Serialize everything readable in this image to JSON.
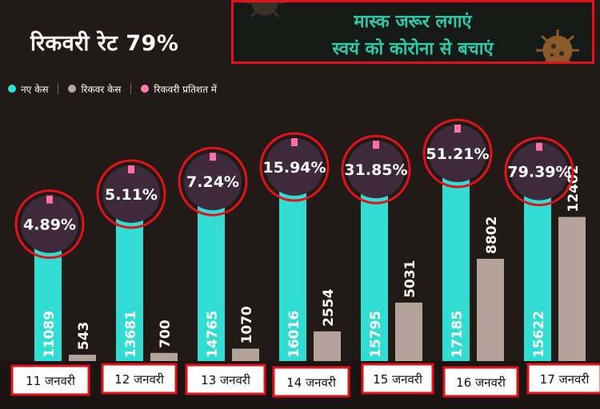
{
  "title": "रिकवरी रेट 79%",
  "banner": {
    "line1": "मास्क जरूर लगाएं",
    "line2": "स्वयं को कोरोना से बचाएं"
  },
  "legend": [
    {
      "label": "नए केस",
      "color": "#2ee0d6"
    },
    {
      "label": "रिकवर केस",
      "color": "#b7a7a0"
    },
    {
      "label": "रिकवरी प्रतिशत में",
      "color": "#ff7bb0"
    }
  ],
  "colors": {
    "new_cases": "#31ddd3",
    "recovered": "#b3a39b",
    "badge_fill": "#3f2a3c",
    "badge_ring": "#e0121b",
    "badge_tick": "#ff6fa9",
    "date_box_border": "#e0121b"
  },
  "chart_data": {
    "type": "bar",
    "categories": [
      "11 जनवरी",
      "12 जनवरी",
      "13 जनवरी",
      "14 जनवरी",
      "15 जनवरी",
      "16 जनवरी",
      "17 जनवरी"
    ],
    "series": [
      {
        "name": "नए केस",
        "values": [
          11089,
          13681,
          14765,
          16016,
          15795,
          17185,
          15622
        ]
      },
      {
        "name": "रिकवर केस",
        "values": [
          543,
          700,
          1070,
          2554,
          5031,
          8802,
          12402
        ]
      }
    ],
    "recovery_percent_labels": [
      "4.89%",
      "5.11%",
      "7.24%",
      "15.94%",
      "31.85%",
      "51.21%",
      "79.39%"
    ],
    "ylim": [
      0,
      17185
    ],
    "grid": false,
    "legend_position": "top-left"
  }
}
